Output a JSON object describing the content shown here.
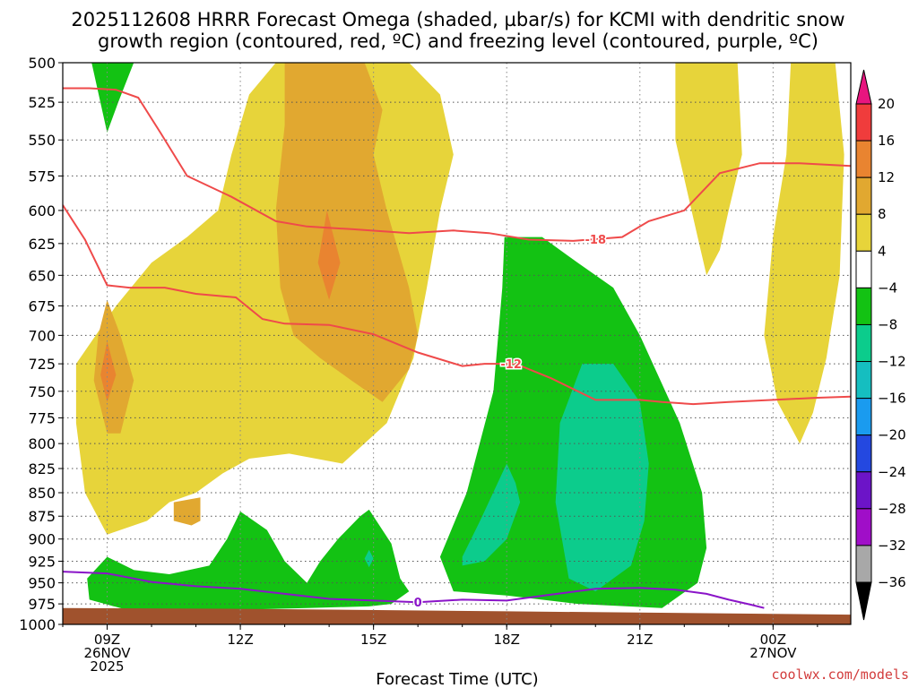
{
  "title_lines": [
    "2025112608 HRRR Forecast Omega (shaded, µbar/s) for KCMI with dendritic snow",
    "growth region (contoured, red, ºC) and freezing level (contoured, purple, ºC)"
  ],
  "credit": "coolwx.com/models",
  "chart_data": {
    "type": "heatmap",
    "xlabel": "Forecast Time (UTC)",
    "ylabel": "",
    "x_range_hours": [
      8,
      25.75
    ],
    "y_range": [
      500,
      1000
    ],
    "y_scale": "log-pressure",
    "grid": "dotted",
    "y_ticks": [
      500,
      525,
      550,
      575,
      600,
      625,
      650,
      675,
      700,
      725,
      750,
      775,
      800,
      825,
      850,
      875,
      900,
      925,
      950,
      975,
      1000
    ],
    "x_ticks": [
      {
        "hour": 9,
        "lines": [
          "09Z",
          "26NOV",
          "2025"
        ]
      },
      {
        "hour": 12,
        "lines": [
          "12Z"
        ]
      },
      {
        "hour": 15,
        "lines": [
          "15Z"
        ]
      },
      {
        "hour": 18,
        "lines": [
          "18Z"
        ]
      },
      {
        "hour": 21,
        "lines": [
          "21Z"
        ]
      },
      {
        "hour": 24,
        "lines": [
          "00Z",
          "27NOV"
        ]
      }
    ],
    "colorbar": {
      "levels": [
        "20",
        "16",
        "12",
        "8",
        "4",
        "−4",
        "−8",
        "−12",
        "−16",
        "−20",
        "−24",
        "−28",
        "−32",
        "−36"
      ],
      "colors": [
        "#e8157f",
        "#f03c3c",
        "#e98430",
        "#e1a830",
        "#e7d43a",
        "#ffffff",
        "#13c213",
        "#0ccc8c",
        "#15bec0",
        "#1a9bef",
        "#2448e0",
        "#6c14c8",
        "#a00ec8",
        "#a8a8a8",
        "#000000"
      ]
    },
    "omega_regions": [
      {
        "level": "4",
        "color": "#e7d43a",
        "x": [
          8.3,
          9.2,
          10.0,
          10.8,
          11.5,
          11.8,
          12.2,
          12.8,
          13.6,
          14.8,
          15.8,
          16.5,
          16.8,
          16.5,
          16.2,
          15.9,
          15.3,
          14.3,
          13.1,
          12.2,
          11.6,
          11.0,
          10.4,
          9.9,
          9.0,
          8.5,
          8.3
        ],
        "y": [
          725,
          675,
          640,
          620,
          600,
          560,
          520,
          500,
          500,
          500,
          500,
          520,
          560,
          600,
          660,
          720,
          780,
          820,
          810,
          815,
          830,
          850,
          860,
          880,
          895,
          850,
          780
        ]
      },
      {
        "level": "4",
        "color": "#e7d43a",
        "x": [
          21.8,
          22.5,
          23.2,
          23.3,
          23.0,
          22.8,
          22.5,
          22.3,
          21.8
        ],
        "y": [
          500,
          500,
          500,
          560,
          600,
          630,
          650,
          620,
          550
        ]
      },
      {
        "level": "4",
        "color": "#e7d43a",
        "x": [
          24.4,
          25.4,
          25.6,
          25.5,
          25.2,
          24.9,
          24.6,
          24.1,
          23.8,
          24.0,
          24.3
        ],
        "y": [
          500,
          500,
          560,
          650,
          720,
          770,
          800,
          760,
          700,
          620,
          560
        ]
      },
      {
        "level": "8",
        "color": "#e1a830",
        "x": [
          13.0,
          14.8,
          15.2,
          15.0,
          15.3,
          15.8,
          16.0,
          15.8,
          15.2,
          14.5,
          13.8,
          13.2,
          12.9,
          12.8,
          13.0
        ],
        "y": [
          500,
          500,
          530,
          560,
          600,
          660,
          700,
          730,
          760,
          740,
          720,
          700,
          660,
          600,
          540
        ]
      },
      {
        "level": "8",
        "color": "#e1a830",
        "x": [
          9.0,
          9.3,
          9.6,
          9.3,
          9.0,
          8.7,
          8.8
        ],
        "y": [
          670,
          700,
          740,
          790,
          790,
          740,
          700
        ]
      },
      {
        "level": "8",
        "color": "#e1a830",
        "x": [
          10.5,
          11.1,
          11.1,
          10.9,
          10.5
        ],
        "y": [
          860,
          855,
          880,
          885,
          880
        ]
      },
      {
        "level": "12",
        "color": "#e98430",
        "x": [
          13.95,
          14.25,
          14.0,
          13.75
        ],
        "y": [
          600,
          640,
          670,
          640
        ]
      },
      {
        "level": "12",
        "color": "#e98430",
        "x": [
          9.0,
          9.2,
          9.0,
          8.85
        ],
        "y": [
          705,
          735,
          760,
          735
        ]
      },
      {
        "level": "-4",
        "color": "#13c213",
        "x": [
          8.65,
          9.6,
          9.25,
          9.0
        ],
        "y": [
          500,
          500,
          525,
          545
        ]
      },
      {
        "level": "-4",
        "color": "#13c213",
        "x": [
          17.95,
          18.8,
          19.6,
          20.4,
          21.0,
          21.9,
          22.4,
          22.5,
          22.3,
          21.5,
          19.6,
          18.0,
          16.8,
          16.5,
          17.1,
          17.7,
          17.9
        ],
        "y": [
          620,
          620,
          640,
          660,
          700,
          780,
          850,
          910,
          950,
          980,
          975,
          965,
          960,
          920,
          850,
          750,
          660
        ]
      },
      {
        "level": "-4",
        "color": "#13c213",
        "x": [
          8.55,
          9.0,
          9.6,
          10.4,
          11.3,
          11.7,
          12.0,
          12.6,
          13.0,
          13.5,
          13.8,
          14.2,
          14.7,
          14.9,
          15.4,
          15.6,
          15.8,
          15.4,
          14.9,
          13.5,
          12.0,
          10.5,
          9.5,
          8.6
        ],
        "y": [
          945,
          920,
          935,
          940,
          930,
          900,
          870,
          890,
          925,
          950,
          925,
          900,
          875,
          868,
          905,
          945,
          960,
          975,
          978,
          980,
          982,
          983,
          983,
          970
        ]
      },
      {
        "level": "-8",
        "color": "#0ccc8c",
        "x": [
          19.7,
          20.4,
          21.0,
          21.2,
          21.1,
          20.8,
          20.0,
          19.4,
          19.1,
          19.2
        ],
        "y": [
          725,
          725,
          760,
          820,
          880,
          930,
          960,
          945,
          860,
          780
        ]
      },
      {
        "level": "-8",
        "color": "#0ccc8c",
        "x": [
          18.0,
          18.2,
          18.3,
          18.0,
          17.5,
          17.0,
          17.0,
          17.4
        ],
        "y": [
          820,
          840,
          860,
          900,
          925,
          930,
          920,
          880
        ]
      },
      {
        "level": "-8",
        "color": "#0ccc8c",
        "x": [
          14.9,
          15.0,
          14.9,
          14.8
        ],
        "y": [
          912,
          922,
          932,
          922
        ]
      }
    ],
    "ground_fill": {
      "label": "terrain",
      "color": "#a0522d",
      "x": [
        8,
        12,
        18,
        24,
        25.75
      ],
      "y": [
        980,
        981,
        984,
        987,
        988
      ]
    },
    "contours": [
      {
        "name": "-18",
        "color": "#ef4a4a",
        "label_at": 20.0,
        "x": [
          8,
          8.6,
          9.2,
          9.7,
          10.2,
          10.8,
          11.8,
          12.8,
          13.5,
          14.5,
          15.8,
          16.8,
          17.6,
          18.5,
          19.5,
          20.6,
          21.2,
          22.0,
          22.8,
          23.7,
          24.6,
          25.75
        ],
        "y": [
          516,
          516,
          517,
          522,
          545,
          575,
          590,
          608,
          612,
          614,
          617,
          615,
          617,
          622,
          623,
          620,
          608,
          600,
          573,
          566,
          566,
          568
        ]
      },
      {
        "name": "-12",
        "color": "#ef4a4a",
        "label_at": 18.1,
        "x": [
          8,
          8.5,
          9.0,
          9.5,
          10.3,
          11.0,
          11.9,
          12.5,
          13.0,
          14.0,
          15.0,
          16.0,
          17.0,
          17.5,
          18.2,
          19.0,
          20.0,
          21.0,
          21.5,
          22.2,
          23.0,
          24.0,
          25.0,
          25.75
        ],
        "y": [
          596,
          622,
          658,
          660,
          660,
          665,
          668,
          686,
          690,
          691,
          699,
          715,
          727,
          725,
          725,
          738,
          758,
          758,
          760,
          762,
          760,
          758,
          756,
          755
        ]
      },
      {
        "name": "0",
        "color": "#8a14c8",
        "label_at": 16.0,
        "x": [
          8,
          9.0,
          10.0,
          11.0,
          12.0,
          13.0,
          14.0,
          15.0,
          16.0,
          17.0,
          18.0,
          19.0,
          20.0,
          21.0,
          21.8,
          22.5,
          23.0,
          23.5,
          23.8
        ],
        "y": [
          937,
          939,
          949,
          954,
          957,
          963,
          969,
          971,
          973,
          970,
          971,
          964,
          957,
          956,
          958,
          963,
          970,
          976,
          980
        ]
      }
    ]
  }
}
